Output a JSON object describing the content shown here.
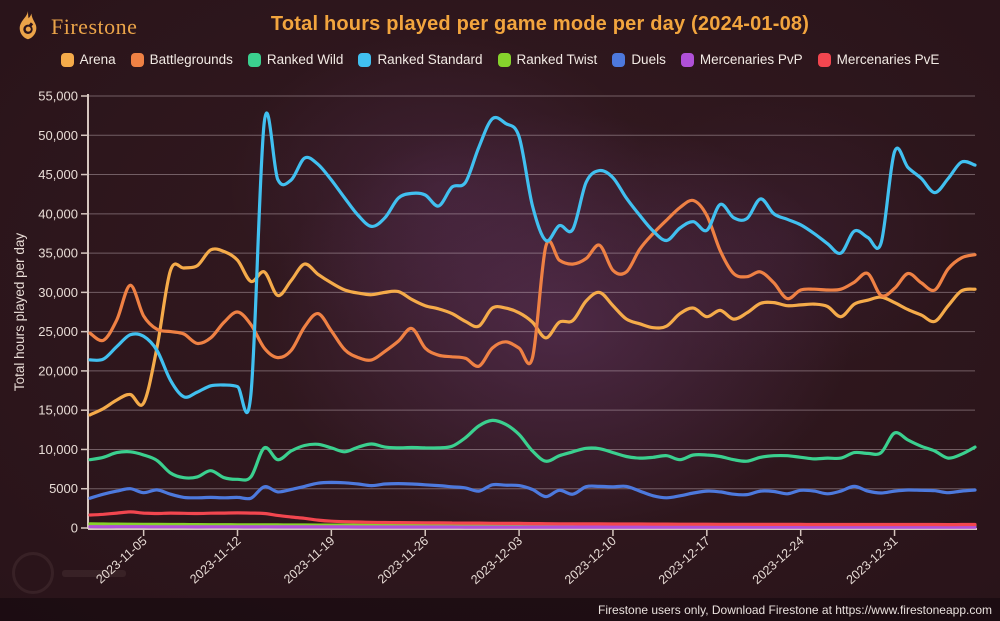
{
  "header": {
    "logo_text": "Firestone",
    "title": "Total hours played per game mode per day (2024-01-08)"
  },
  "footer": {
    "note": "Firestone users only, Download Firestone at https://www.firestoneapp.com"
  },
  "colors": {
    "title": "#f2a53e",
    "logo": "#eba449",
    "legendText": "#f2eae4",
    "axis": "#d6c6bf",
    "grid": "rgba(228,212,218,0.38)",
    "tickLabel": "#e8dcd6",
    "footerText": "#e9e1dd"
  },
  "chart_data": {
    "type": "line",
    "title": "Total hours played per game mode per day (2024-01-08)",
    "xlabel": "",
    "ylabel": "Total hours played per day",
    "ylim": [
      0,
      55000
    ],
    "grid": true,
    "legend_position": "top",
    "y_ticks": [
      {
        "value": 0,
        "label": "0"
      },
      {
        "value": 5000,
        "label": "5000"
      },
      {
        "value": 10000,
        "label": "10,000"
      },
      {
        "value": 15000,
        "label": "15,000"
      },
      {
        "value": 20000,
        "label": "20,000"
      },
      {
        "value": 25000,
        "label": "25,000"
      },
      {
        "value": 30000,
        "label": "30,000"
      },
      {
        "value": 35000,
        "label": "35,000"
      },
      {
        "value": 40000,
        "label": "40,000"
      },
      {
        "value": 45000,
        "label": "45,000"
      },
      {
        "value": 50000,
        "label": "50,000"
      },
      {
        "value": 55000,
        "label": "55,000"
      }
    ],
    "x_dates": [
      "2023-11-01",
      "2023-11-02",
      "2023-11-03",
      "2023-11-04",
      "2023-11-05",
      "2023-11-06",
      "2023-11-07",
      "2023-11-08",
      "2023-11-09",
      "2023-11-10",
      "2023-11-11",
      "2023-11-12",
      "2023-11-13",
      "2023-11-14",
      "2023-11-15",
      "2023-11-16",
      "2023-11-17",
      "2023-11-18",
      "2023-11-19",
      "2023-11-20",
      "2023-11-21",
      "2023-11-22",
      "2023-11-23",
      "2023-11-24",
      "2023-11-25",
      "2023-11-26",
      "2023-11-27",
      "2023-11-28",
      "2023-11-29",
      "2023-11-30",
      "2023-12-01",
      "2023-12-02",
      "2023-12-03",
      "2023-12-04",
      "2023-12-05",
      "2023-12-06",
      "2023-12-07",
      "2023-12-08",
      "2023-12-09",
      "2023-12-10",
      "2023-12-11",
      "2023-12-12",
      "2023-12-13",
      "2023-12-14",
      "2023-12-15",
      "2023-12-16",
      "2023-12-17",
      "2023-12-18",
      "2023-12-19",
      "2023-12-20",
      "2023-12-21",
      "2023-12-22",
      "2023-12-23",
      "2023-12-24",
      "2023-12-25",
      "2023-12-26",
      "2023-12-27",
      "2023-12-28",
      "2023-12-29",
      "2023-12-30",
      "2023-12-31",
      "2024-01-01",
      "2024-01-02",
      "2024-01-03",
      "2024-01-04",
      "2024-01-05",
      "2024-01-06"
    ],
    "x_tick_indices": [
      4,
      11,
      18,
      25,
      32,
      39,
      46,
      53,
      60
    ],
    "series": [
      {
        "name": "Arena",
        "color": "#f5ab4a",
        "values": [
          14400,
          15200,
          16300,
          17000,
          15900,
          23000,
          32800,
          33100,
          33400,
          35400,
          35200,
          34100,
          31400,
          32600,
          29600,
          31500,
          33600,
          32300,
          31200,
          30300,
          29900,
          29700,
          30000,
          30100,
          29100,
          28300,
          27900,
          27300,
          26300,
          25700,
          28000,
          28000,
          27400,
          26200,
          24200,
          26200,
          26400,
          28900,
          30000,
          28300,
          26600,
          26000,
          25500,
          25700,
          27300,
          28000,
          26900,
          27700,
          26600,
          27400,
          28600,
          28700,
          28300,
          28400,
          28500,
          28200,
          26900,
          28500,
          29000,
          29400,
          28700,
          27800,
          27100,
          26300,
          28300,
          30200,
          30400
        ]
      },
      {
        "name": "Battlegrounds",
        "color": "#ef8144",
        "values": [
          24800,
          23900,
          26500,
          30900,
          27000,
          25300,
          25000,
          24700,
          23500,
          24200,
          26200,
          27500,
          25900,
          22900,
          21700,
          22600,
          25600,
          27300,
          25100,
          22700,
          21700,
          21400,
          22500,
          23800,
          25400,
          22900,
          22000,
          21800,
          21600,
          20600,
          22900,
          23700,
          22900,
          21700,
          35900,
          34100,
          33600,
          34300,
          36000,
          32800,
          32600,
          35500,
          37500,
          39200,
          40800,
          41700,
          39800,
          35300,
          32400,
          32000,
          32600,
          31200,
          29200,
          30300,
          30400,
          30300,
          30400,
          31300,
          32400,
          29600,
          30500,
          32400,
          31200,
          30300,
          33000,
          34400,
          34800
        ]
      },
      {
        "name": "Ranked Wild",
        "color": "#3bd08f",
        "values": [
          8700,
          9000,
          9600,
          9700,
          9300,
          8600,
          7000,
          6400,
          6500,
          7300,
          6400,
          6200,
          6500,
          10200,
          8700,
          9800,
          10500,
          10650,
          10200,
          9700,
          10300,
          10700,
          10300,
          10200,
          10250,
          10200,
          10200,
          10400,
          11500,
          13000,
          13700,
          13200,
          11900,
          9800,
          8500,
          9200,
          9700,
          10150,
          10100,
          9600,
          9100,
          8900,
          9000,
          9200,
          8700,
          9300,
          9300,
          9100,
          8700,
          8500,
          9000,
          9200,
          9200,
          9000,
          8800,
          8900,
          8900,
          9600,
          9500,
          9600,
          12100,
          11200,
          10400,
          9800,
          8900,
          9400,
          10300
        ]
      },
      {
        "name": "Ranked Standard",
        "color": "#41c0f0",
        "values": [
          21400,
          21500,
          23100,
          24600,
          24400,
          22600,
          18800,
          16700,
          17300,
          18100,
          18200,
          18000,
          17000,
          51700,
          44400,
          44300,
          47100,
          46300,
          44300,
          42000,
          39800,
          38400,
          39500,
          42000,
          42600,
          42400,
          41000,
          43400,
          44000,
          48500,
          52100,
          51500,
          49800,
          41000,
          36600,
          38500,
          38000,
          44000,
          45500,
          44600,
          42000,
          39800,
          37800,
          36600,
          38200,
          39000,
          37900,
          41200,
          39500,
          39400,
          41900,
          40000,
          39300,
          38600,
          37500,
          36200,
          35000,
          37800,
          37000,
          36300,
          47900,
          45900,
          44500,
          42700,
          44500,
          46600,
          46200
        ]
      },
      {
        "name": "Ranked Twist",
        "color": "#86d32c",
        "values": [
          520,
          505,
          495,
          485,
          470,
          460,
          450,
          440,
          430,
          425,
          420,
          410,
          405,
          400,
          390,
          385,
          380,
          375,
          370,
          365,
          360,
          355,
          350,
          350,
          345,
          345,
          340,
          340,
          335,
          335,
          330,
          330,
          325,
          325,
          320,
          320,
          315,
          315,
          310,
          310,
          310,
          305,
          305,
          305,
          300,
          300,
          300,
          300,
          300,
          300,
          300,
          300,
          300,
          300,
          300,
          300,
          300,
          300,
          300,
          300,
          310,
          310,
          305,
          300,
          300,
          305,
          310
        ]
      },
      {
        "name": "Duels",
        "color": "#4d79dd",
        "values": [
          3800,
          4300,
          4700,
          5000,
          4500,
          4850,
          4300,
          3900,
          3850,
          3900,
          3850,
          3900,
          3800,
          5250,
          4600,
          4900,
          5300,
          5700,
          5800,
          5750,
          5600,
          5400,
          5600,
          5650,
          5600,
          5500,
          5400,
          5250,
          5100,
          4700,
          5500,
          5450,
          5400,
          4900,
          4000,
          4800,
          4300,
          5260,
          5300,
          5250,
          5300,
          4700,
          4100,
          3850,
          4100,
          4450,
          4700,
          4600,
          4300,
          4250,
          4700,
          4650,
          4350,
          4800,
          4700,
          4350,
          4700,
          5300,
          4700,
          4450,
          4700,
          4840,
          4800,
          4750,
          4500,
          4700,
          4840
        ]
      },
      {
        "name": "Mercenaries PvP",
        "color": "#b050d8",
        "values": [
          160,
          155,
          165,
          170,
          160,
          155,
          150,
          150,
          145,
          150,
          150,
          148,
          145,
          150,
          145,
          140,
          140,
          138,
          135,
          135,
          132,
          130,
          130,
          128,
          128,
          125,
          125,
          122,
          120,
          120,
          120,
          120,
          118,
          118,
          115,
          115,
          115,
          112,
          112,
          110,
          110,
          110,
          110,
          108,
          108,
          108,
          105,
          105,
          105,
          105,
          105,
          105,
          105,
          105,
          105,
          105,
          105,
          108,
          108,
          108,
          112,
          112,
          110,
          110,
          110,
          112,
          115
        ]
      },
      {
        "name": "Mercenaries PvE",
        "color": "#f2464f",
        "values": [
          1650,
          1750,
          1900,
          2050,
          1900,
          1850,
          1900,
          1870,
          1850,
          1880,
          1900,
          1920,
          1900,
          1850,
          1600,
          1400,
          1230,
          1000,
          860,
          800,
          760,
          720,
          700,
          690,
          680,
          660,
          650,
          640,
          630,
          620,
          600,
          590,
          580,
          560,
          550,
          540,
          530,
          525,
          520,
          515,
          510,
          505,
          500,
          495,
          490,
          485,
          480,
          475,
          470,
          465,
          460,
          458,
          455,
          452,
          450,
          448,
          446,
          444,
          442,
          440,
          445,
          445,
          442,
          440,
          438,
          440,
          445
        ]
      }
    ]
  }
}
